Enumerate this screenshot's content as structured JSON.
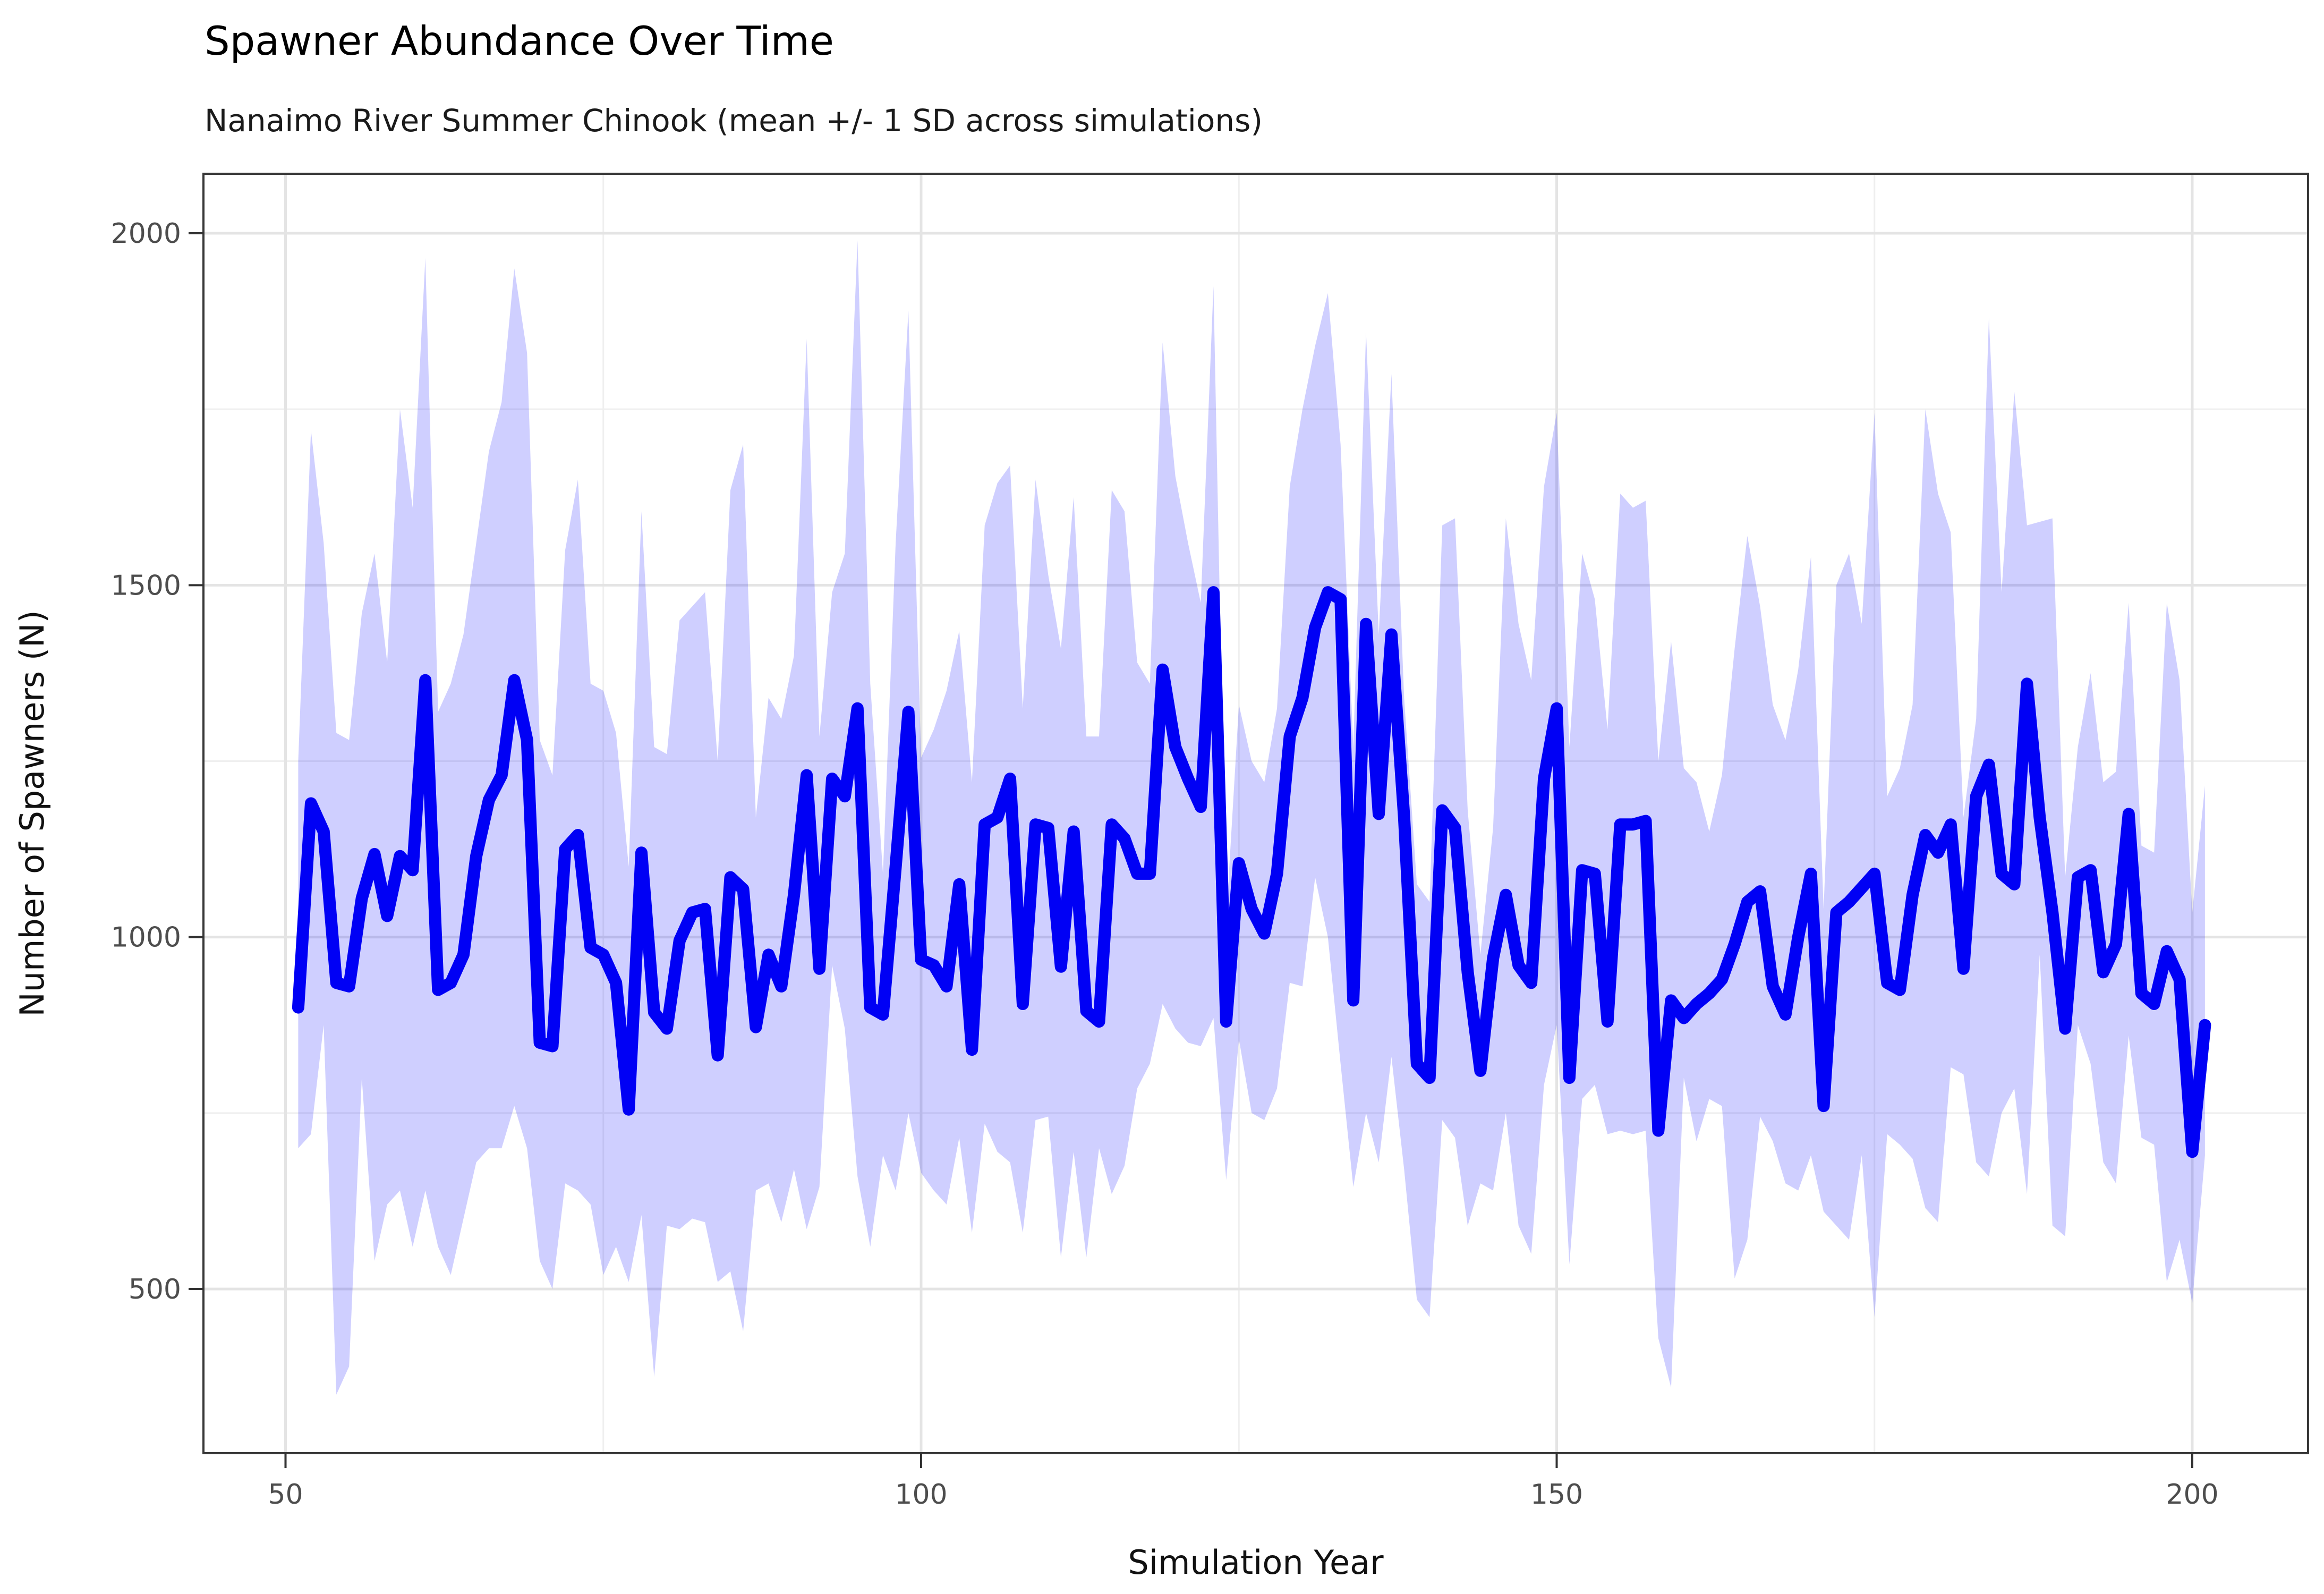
{
  "chart_data": {
    "type": "line",
    "title": "Spawner Abundance Over Time",
    "subtitle": "Nanaimo River Summer Chinook (mean +/- 1 SD across simulations)",
    "xlabel": "Simulation Year",
    "ylabel": "Number of Spawners (N)",
    "legend_position": "none",
    "grid": true,
    "panel_background": "#ffffff",
    "colors": {
      "mean_line": "#0000f5",
      "ribbon_fill_rgba": "rgba(0,0,255,0.19)",
      "major_grid": "#e4e4e4",
      "minor_grid": "#efefef",
      "panel_border": "#383838",
      "tick_mark": "#333333",
      "tick_label": "#4d4d4d"
    },
    "x_axis": {
      "ticks": [
        50,
        100,
        150,
        200
      ],
      "minor_ticks": [
        75,
        125,
        175
      ],
      "lim": [
        43.5,
        209.1
      ]
    },
    "y_axis": {
      "ticks": [
        500,
        1000,
        1500,
        2000
      ],
      "minor_ticks": [
        750,
        1250,
        1750
      ],
      "lim": [
        268,
        2085
      ]
    },
    "year_start": 51,
    "year_end": 201,
    "series": [
      {
        "name": "mean",
        "values": [
          900,
          1190,
          1150,
          935,
          930,
          1055,
          1118,
          1030,
          1115,
          1095,
          1365,
          925,
          935,
          975,
          1115,
          1195,
          1230,
          1365,
          1280,
          850,
          845,
          1125,
          1145,
          985,
          975,
          935,
          755,
          1120,
          893,
          870,
          995,
          1035,
          1040,
          832,
          1085,
          1068,
          872,
          975,
          930,
          1060,
          1230,
          955,
          1225,
          1200,
          1325,
          900,
          890,
          1100,
          1320,
          968,
          960,
          930,
          1075,
          840,
          1160,
          1170,
          1225,
          905,
          1160,
          1155,
          958,
          1150,
          895,
          880,
          1160,
          1140,
          1090,
          1090,
          1380,
          1270,
          1225,
          1185,
          1490,
          880,
          1105,
          1040,
          1005,
          1090,
          1285,
          1340,
          1440,
          1490,
          1480,
          910,
          1445,
          1175,
          1430,
          1170,
          820,
          800,
          1180,
          1155,
          950,
          810,
          970,
          1060,
          960,
          935,
          1225,
          1325,
          800,
          1095,
          1090,
          880,
          1160,
          1160,
          1165,
          725,
          910,
          885,
          905,
          920,
          940,
          990,
          1050,
          1065,
          930,
          890,
          1000,
          1090,
          760,
          1035,
          1050,
          1070,
          1090,
          935,
          925,
          1060,
          1145,
          1120,
          1160,
          955,
          1200,
          1245,
          1090,
          1075,
          1360,
          1170,
          1035,
          870,
          1085,
          1095,
          950,
          990,
          1175,
          920,
          905,
          980,
          940,
          695,
          875
        ]
      },
      {
        "name": "mean_plus_1sd",
        "values": [
          1250,
          1720,
          1560,
          1290,
          1280,
          1460,
          1545,
          1390,
          1750,
          1610,
          1965,
          1320,
          1360,
          1430,
          1560,
          1690,
          1760,
          1950,
          1830,
          1280,
          1230,
          1550,
          1650,
          1360,
          1350,
          1290,
          1100,
          1605,
          1270,
          1260,
          1450,
          1470,
          1490,
          1250,
          1635,
          1700,
          1170,
          1340,
          1310,
          1400,
          1850,
          1285,
          1490,
          1545,
          1990,
          1360,
          1090,
          1560,
          1890,
          1255,
          1295,
          1350,
          1435,
          1220,
          1585,
          1645,
          1670,
          1325,
          1650,
          1515,
          1410,
          1625,
          1285,
          1285,
          1635,
          1605,
          1390,
          1360,
          1845,
          1655,
          1560,
          1475,
          1925,
          1025,
          1330,
          1250,
          1220,
          1325,
          1640,
          1750,
          1840,
          1915,
          1700,
          1270,
          1860,
          1430,
          1800,
          1340,
          1075,
          1050,
          1585,
          1595,
          1180,
          975,
          1155,
          1595,
          1445,
          1365,
          1640,
          1745,
          1270,
          1545,
          1480,
          1295,
          1630,
          1610,
          1620,
          1250,
          1420,
          1240,
          1220,
          1150,
          1230,
          1410,
          1570,
          1470,
          1330,
          1280,
          1380,
          1540,
          1040,
          1500,
          1545,
          1445,
          1745,
          1200,
          1240,
          1330,
          1750,
          1630,
          1575,
          1170,
          1310,
          1880,
          1490,
          1775,
          1585,
          1590,
          1595,
          1085,
          1270,
          1375,
          1220,
          1235,
          1475,
          1130,
          1120,
          1475,
          1365,
          1035,
          1215
        ]
      },
      {
        "name": "mean_minus_1sd",
        "values": [
          700,
          720,
          875,
          350,
          390,
          800,
          540,
          620,
          640,
          560,
          640,
          560,
          520,
          600,
          680,
          700,
          700,
          760,
          700,
          540,
          500,
          650,
          640,
          620,
          520,
          560,
          510,
          605,
          375,
          590,
          585,
          600,
          595,
          510,
          525,
          440,
          640,
          650,
          595,
          670,
          585,
          645,
          960,
          870,
          660,
          560,
          690,
          640,
          750,
          665,
          640,
          620,
          715,
          580,
          735,
          695,
          680,
          580,
          740,
          745,
          545,
          695,
          545,
          700,
          635,
          675,
          785,
          820,
          905,
          870,
          850,
          845,
          885,
          655,
          855,
          750,
          740,
          785,
          935,
          930,
          1085,
          1000,
          820,
          645,
          750,
          680,
          830,
          670,
          485,
          460,
          740,
          715,
          590,
          650,
          640,
          750,
          590,
          550,
          790,
          875,
          535,
          770,
          790,
          720,
          725,
          720,
          725,
          430,
          360,
          800,
          710,
          770,
          760,
          515,
          570,
          745,
          710,
          650,
          640,
          690,
          610,
          590,
          570,
          690,
          460,
          720,
          705,
          685,
          615,
          595,
          815,
          805,
          680,
          660,
          750,
          785,
          635,
          975,
          590,
          575,
          875,
          820,
          680,
          650,
          860,
          715,
          705,
          510,
          570,
          480,
          690
        ]
      }
    ]
  }
}
